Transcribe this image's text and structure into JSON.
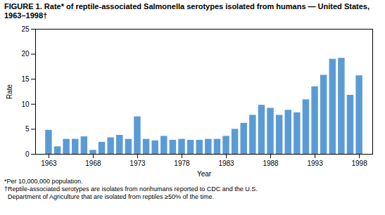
{
  "chart_data": {
    "type": "bar",
    "title": "FIGURE 1. Rate* of reptile-associated Salmonella serotypes isolated from humans — United States, 1963–1998†",
    "x": [
      1963,
      1964,
      1965,
      1966,
      1967,
      1968,
      1969,
      1970,
      1971,
      1972,
      1973,
      1974,
      1975,
      1976,
      1977,
      1978,
      1979,
      1980,
      1981,
      1982,
      1983,
      1984,
      1985,
      1986,
      1987,
      1988,
      1989,
      1990,
      1991,
      1992,
      1993,
      1994,
      1995,
      1996,
      1997,
      1998
    ],
    "values": [
      4.8,
      1.5,
      3.0,
      3.0,
      3.5,
      0.8,
      2.4,
      3.3,
      3.8,
      3.0,
      7.5,
      3.0,
      2.7,
      3.6,
      2.8,
      3.0,
      2.8,
      2.8,
      3.0,
      3.0,
      3.6,
      5.0,
      6.2,
      7.8,
      9.8,
      9.2,
      7.8,
      8.8,
      8.3,
      10.9,
      13.5,
      15.8,
      19.0,
      19.2,
      11.8,
      15.7
    ],
    "color": "#5B9BD5",
    "xlabel": "Year",
    "ylabel": "Rate",
    "xlim": [
      1961.5,
      1999.5
    ],
    "xticks": [
      1963,
      1968,
      1973,
      1978,
      1983,
      1988,
      1993,
      1998
    ],
    "ylim": [
      0,
      25
    ],
    "yticks": [
      0,
      5,
      10,
      15,
      20,
      25
    ],
    "annotations": [
      "*Per 10,000,000 population.",
      "†Reptile-associated serotypes are isolates from nonhumans reported to CDC and the U.S.",
      "  Department of Agriculture that are isolated from reptiles ≥50% of the time."
    ]
  }
}
